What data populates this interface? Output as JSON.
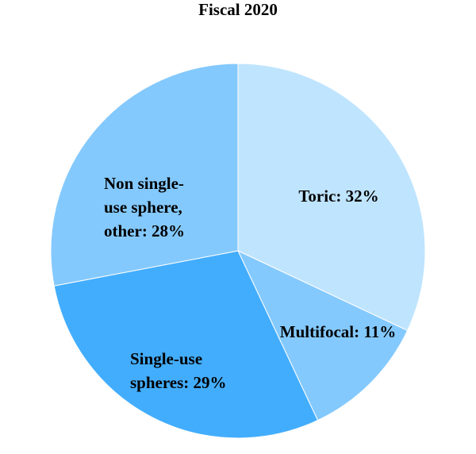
{
  "chart_data": {
    "type": "pie",
    "title": "Fiscal 2020",
    "start_angle_deg": 0,
    "direction": "clockwise",
    "slices": [
      {
        "name": "Toric",
        "value": 32,
        "color": "#bfe4fe",
        "label_lines": [
          "Toric: 32%"
        ]
      },
      {
        "name": "Multifocal",
        "value": 11,
        "color": "#84c9fd",
        "label_lines": [
          "Multifocal: 11%"
        ]
      },
      {
        "name": "Single-use spheres",
        "value": 29,
        "color": "#43adfd",
        "label_lines": [
          "Single-use",
          "spheres: 29%"
        ]
      },
      {
        "name": "Non single-use sphere, other",
        "value": 28,
        "color": "#84c9fd",
        "label_lines": [
          "Non single-",
          "use sphere,",
          "other: 28%"
        ]
      }
    ]
  }
}
